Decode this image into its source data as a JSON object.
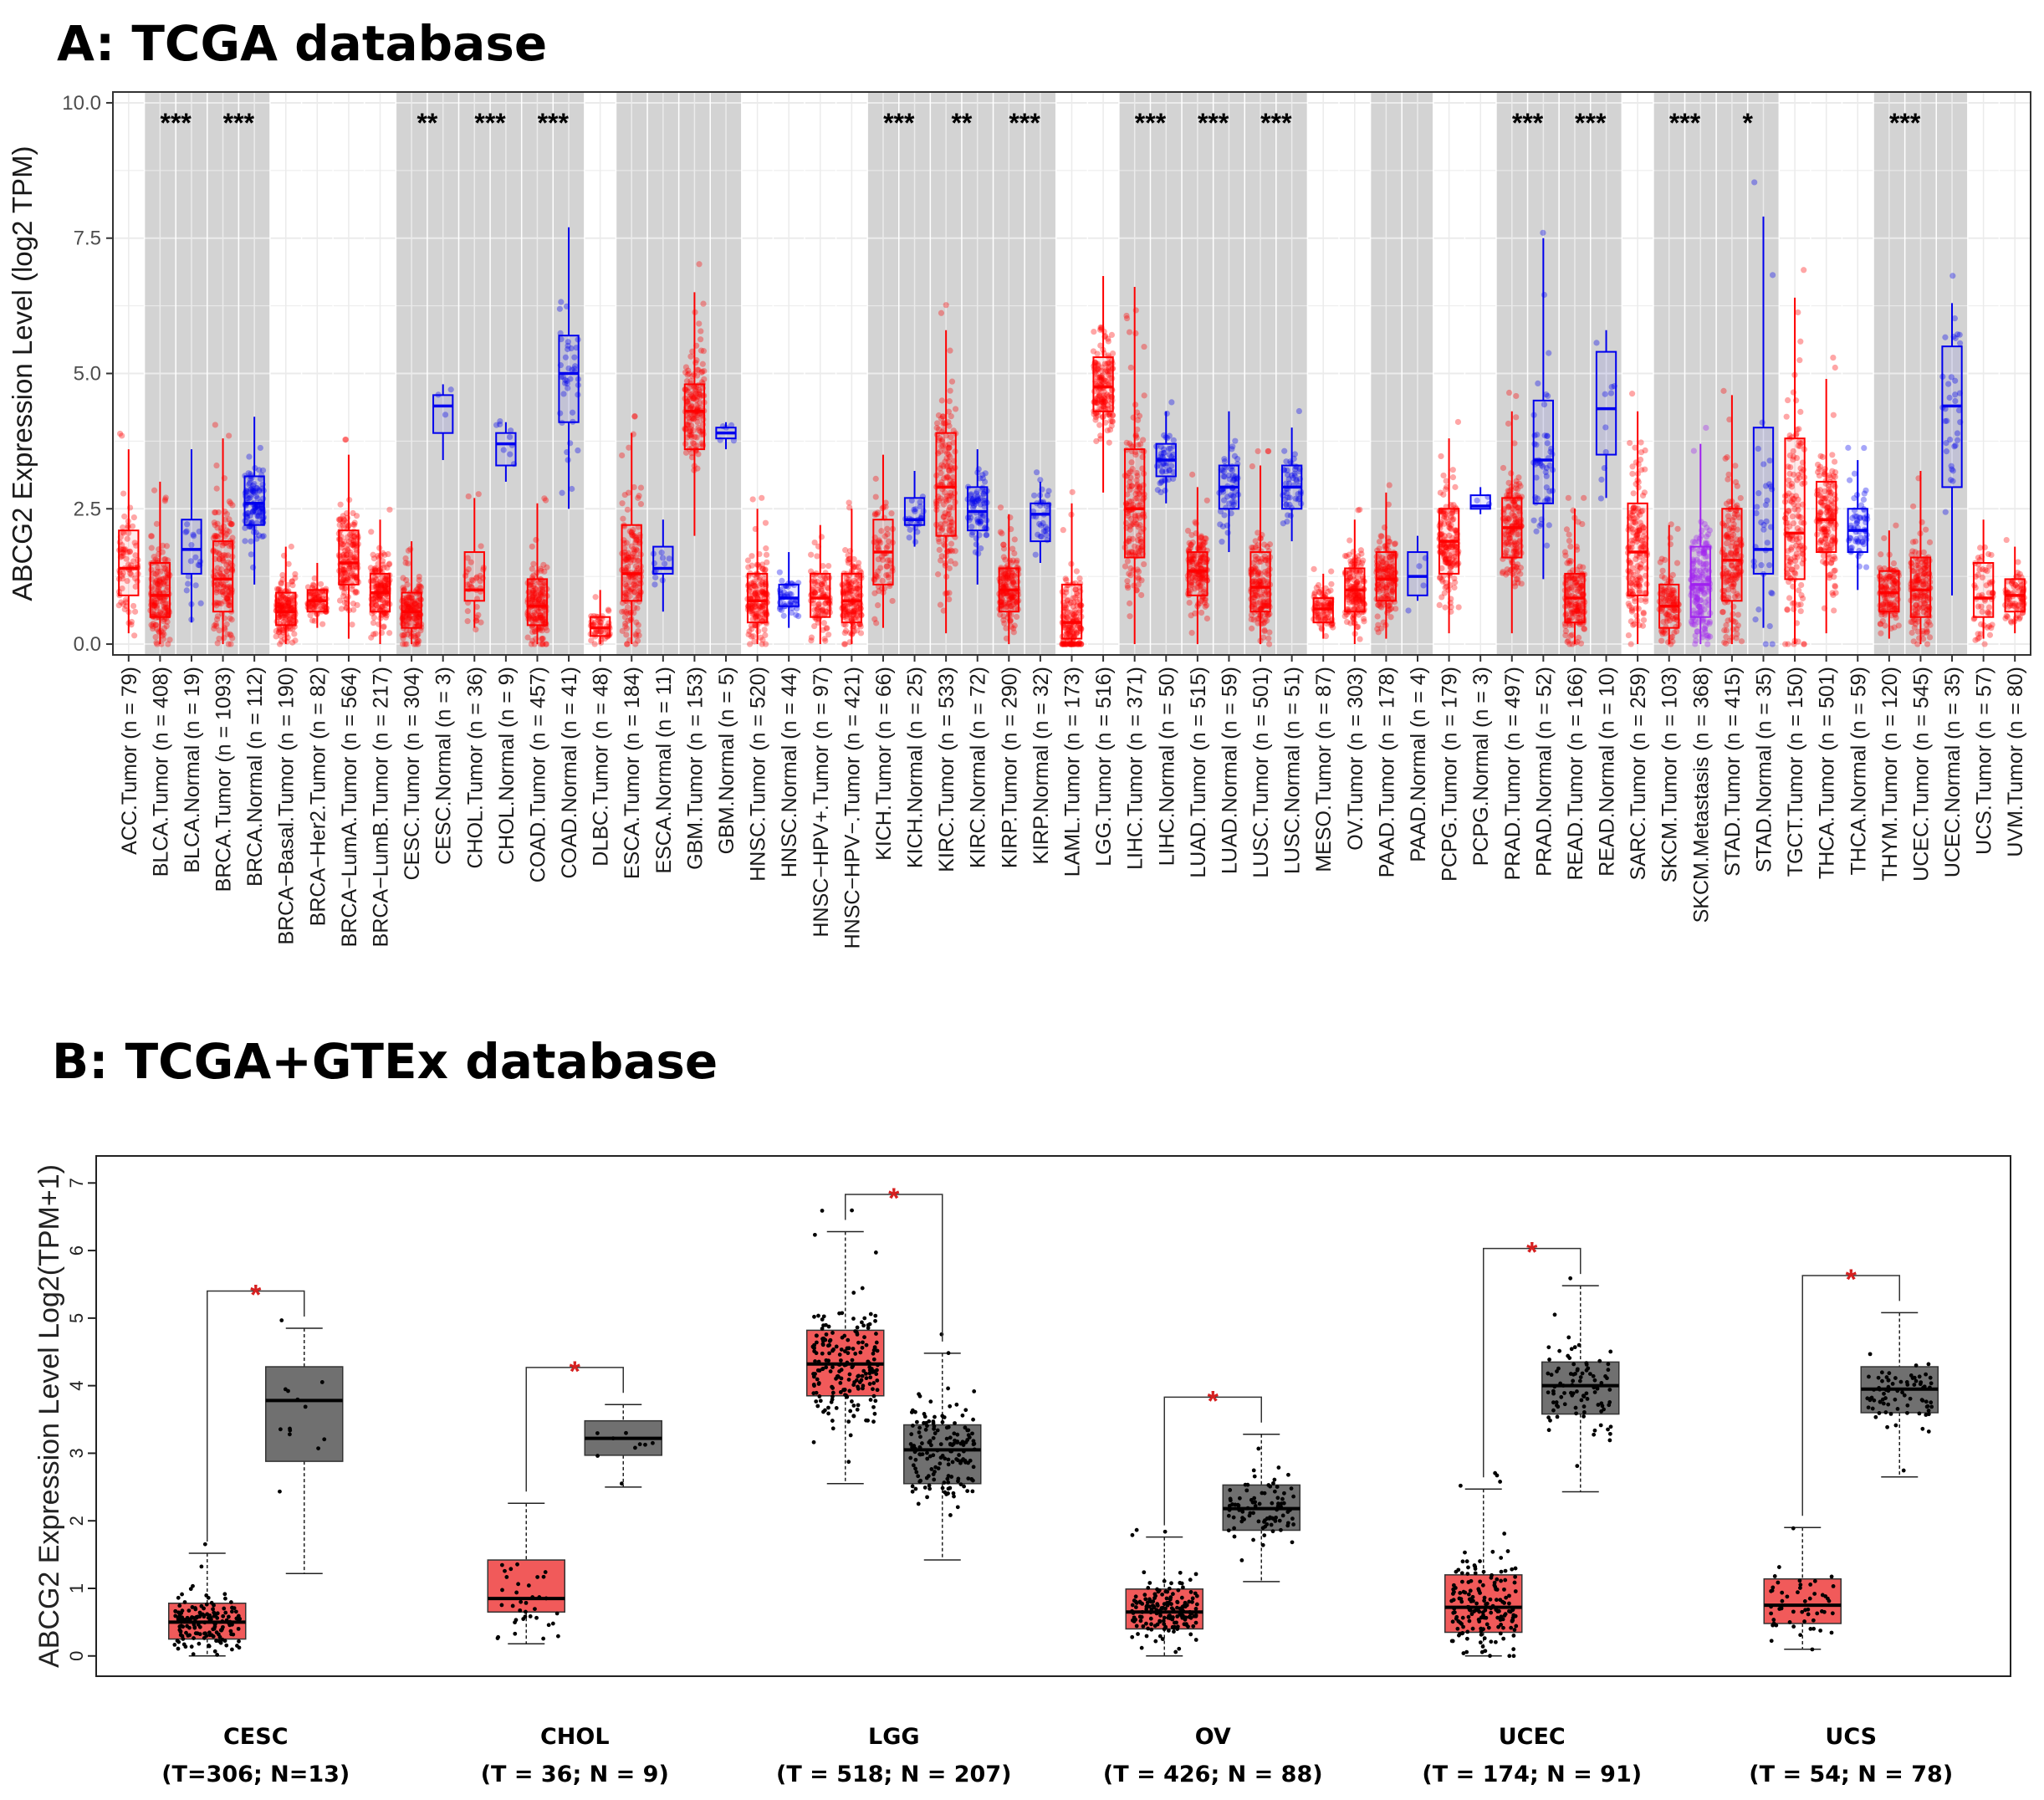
{
  "panel_a": {
    "title": "A: TCGA database"
  },
  "panel_b": {
    "title": "B: TCGA+GTEx database"
  },
  "chart_data": [
    {
      "type": "box",
      "title": "A: TCGA database",
      "ylabel": "ABCG2 Expression Level (log2 TPM)",
      "ylim": [
        -0.2,
        10.2
      ],
      "yticks": [
        "0.0",
        "2.5",
        "5.0",
        "7.5",
        "10.0"
      ],
      "tumor_color": "#ff0000",
      "normal_color": "#0000ee",
      "metastasis_color": "#a020f0",
      "groups": [
        {
          "label": "ACC.Tumor (n = 79)",
          "kind": "tumor",
          "shade": false,
          "q1": 0.9,
          "med": 1.4,
          "q3": 2.1,
          "lo": 0.2,
          "hi": 3.6,
          "sig": ""
        },
        {
          "label": "BLCA.Tumor (n = 408)",
          "kind": "tumor",
          "shade": true,
          "q1": 0.5,
          "med": 0.9,
          "q3": 1.5,
          "lo": 0.0,
          "hi": 3.0,
          "sig": "***"
        },
        {
          "label": "BLCA.Normal (n = 19)",
          "kind": "normal",
          "shade": true,
          "q1": 1.3,
          "med": 1.75,
          "q3": 2.3,
          "lo": 0.4,
          "hi": 3.6,
          "sig": ""
        },
        {
          "label": "BRCA.Tumor (n = 1093)",
          "kind": "tumor",
          "shade": true,
          "q1": 0.6,
          "med": 1.2,
          "q3": 1.9,
          "lo": 0.0,
          "hi": 3.8,
          "sig": "***"
        },
        {
          "label": "BRCA.Normal (n = 112)",
          "kind": "normal",
          "shade": true,
          "q1": 2.2,
          "med": 2.6,
          "q3": 3.1,
          "lo": 1.1,
          "hi": 4.2,
          "sig": ""
        },
        {
          "label": "BRCA−Basal.Tumor (n = 190)",
          "kind": "tumor",
          "shade": false,
          "q1": 0.35,
          "med": 0.6,
          "q3": 0.95,
          "lo": 0.0,
          "hi": 1.8,
          "sig": ""
        },
        {
          "label": "BRCA−Her2.Tumor (n = 82)",
          "kind": "tumor",
          "shade": false,
          "q1": 0.6,
          "med": 0.8,
          "q3": 1.0,
          "lo": 0.3,
          "hi": 1.5,
          "sig": ""
        },
        {
          "label": "BRCA−LumA.Tumor (n = 564)",
          "kind": "tumor",
          "shade": false,
          "q1": 1.1,
          "med": 1.5,
          "q3": 2.1,
          "lo": 0.1,
          "hi": 3.5,
          "sig": ""
        },
        {
          "label": "BRCA−LumB.Tumor (n = 217)",
          "kind": "tumor",
          "shade": false,
          "q1": 0.6,
          "med": 0.95,
          "q3": 1.3,
          "lo": 0.0,
          "hi": 2.3,
          "sig": ""
        },
        {
          "label": "CESC.Tumor (n = 304)",
          "kind": "tumor",
          "shade": true,
          "q1": 0.3,
          "med": 0.6,
          "q3": 0.95,
          "lo": 0.0,
          "hi": 1.9,
          "sig": "**"
        },
        {
          "label": "CESC.Normal (n = 3)",
          "kind": "normal",
          "shade": true,
          "q1": 3.9,
          "med": 4.4,
          "q3": 4.6,
          "lo": 3.4,
          "hi": 4.8,
          "sig": ""
        },
        {
          "label": "CHOL.Tumor (n = 36)",
          "kind": "tumor",
          "shade": true,
          "q1": 0.8,
          "med": 1.0,
          "q3": 1.7,
          "lo": 0.3,
          "hi": 2.7,
          "sig": "***"
        },
        {
          "label": "CHOL.Normal (n = 9)",
          "kind": "normal",
          "shade": true,
          "q1": 3.3,
          "med": 3.7,
          "q3": 3.9,
          "lo": 3.0,
          "hi": 4.1,
          "sig": ""
        },
        {
          "label": "COAD.Tumor (n = 457)",
          "kind": "tumor",
          "shade": true,
          "q1": 0.35,
          "med": 0.7,
          "q3": 1.2,
          "lo": 0.0,
          "hi": 2.6,
          "sig": "***"
        },
        {
          "label": "COAD.Normal (n = 41)",
          "kind": "normal",
          "shade": true,
          "q1": 4.1,
          "med": 5.0,
          "q3": 5.7,
          "lo": 2.5,
          "hi": 7.7,
          "sig": ""
        },
        {
          "label": "DLBC.Tumor (n = 48)",
          "kind": "tumor",
          "shade": false,
          "q1": 0.15,
          "med": 0.3,
          "q3": 0.5,
          "lo": 0.0,
          "hi": 1.0,
          "sig": ""
        },
        {
          "label": "ESCA.Tumor (n = 184)",
          "kind": "tumor",
          "shade": true,
          "q1": 0.8,
          "med": 1.3,
          "q3": 2.2,
          "lo": 0.0,
          "hi": 3.9,
          "sig": ""
        },
        {
          "label": "ESCA.Normal (n = 11)",
          "kind": "normal",
          "shade": true,
          "q1": 1.3,
          "med": 1.4,
          "q3": 1.8,
          "lo": 0.6,
          "hi": 2.3,
          "sig": ""
        },
        {
          "label": "GBM.Tumor (n = 153)",
          "kind": "tumor",
          "shade": true,
          "q1": 3.6,
          "med": 4.3,
          "q3": 4.8,
          "lo": 2.0,
          "hi": 6.5,
          "sig": ""
        },
        {
          "label": "GBM.Normal (n = 5)",
          "kind": "normal",
          "shade": true,
          "q1": 3.8,
          "med": 3.9,
          "q3": 4.0,
          "lo": 3.6,
          "hi": 4.1,
          "sig": ""
        },
        {
          "label": "HNSC.Tumor (n = 520)",
          "kind": "tumor",
          "shade": false,
          "q1": 0.4,
          "med": 0.8,
          "q3": 1.3,
          "lo": 0.0,
          "hi": 2.5,
          "sig": ""
        },
        {
          "label": "HNSC.Normal (n = 44)",
          "kind": "normal",
          "shade": false,
          "q1": 0.7,
          "med": 0.85,
          "q3": 1.1,
          "lo": 0.3,
          "hi": 1.7,
          "sig": ""
        },
        {
          "label": "HNSC−HPV+.Tumor (n = 97)",
          "kind": "tumor",
          "shade": false,
          "q1": 0.5,
          "med": 0.85,
          "q3": 1.3,
          "lo": 0.0,
          "hi": 2.2,
          "sig": ""
        },
        {
          "label": "HNSC−HPV−.Tumor (n = 421)",
          "kind": "tumor",
          "shade": false,
          "q1": 0.4,
          "med": 0.8,
          "q3": 1.3,
          "lo": 0.0,
          "hi": 2.5,
          "sig": ""
        },
        {
          "label": "KICH.Tumor (n = 66)",
          "kind": "tumor",
          "shade": true,
          "q1": 1.1,
          "med": 1.7,
          "q3": 2.3,
          "lo": 0.3,
          "hi": 3.5,
          "sig": "***"
        },
        {
          "label": "KICH.Normal (n = 25)",
          "kind": "normal",
          "shade": true,
          "q1": 2.2,
          "med": 2.3,
          "q3": 2.7,
          "lo": 1.8,
          "hi": 3.2,
          "sig": ""
        },
        {
          "label": "KIRC.Tumor (n = 533)",
          "kind": "tumor",
          "shade": true,
          "q1": 2.0,
          "med": 2.9,
          "q3": 3.9,
          "lo": 0.2,
          "hi": 5.8,
          "sig": "**"
        },
        {
          "label": "KIRC.Normal (n = 72)",
          "kind": "normal",
          "shade": true,
          "q1": 2.1,
          "med": 2.45,
          "q3": 2.9,
          "lo": 1.1,
          "hi": 3.6,
          "sig": ""
        },
        {
          "label": "KIRP.Tumor (n = 290)",
          "kind": "tumor",
          "shade": true,
          "q1": 0.6,
          "med": 1.0,
          "q3": 1.4,
          "lo": 0.0,
          "hi": 2.4,
          "sig": "***"
        },
        {
          "label": "KIRP.Normal (n = 32)",
          "kind": "normal",
          "shade": true,
          "q1": 1.9,
          "med": 2.4,
          "q3": 2.6,
          "lo": 1.5,
          "hi": 3.0,
          "sig": ""
        },
        {
          "label": "LAML.Tumor (n = 173)",
          "kind": "tumor",
          "shade": false,
          "q1": 0.1,
          "med": 0.4,
          "q3": 1.1,
          "lo": 0.0,
          "hi": 2.6,
          "sig": ""
        },
        {
          "label": "LGG.Tumor (n = 516)",
          "kind": "tumor",
          "shade": false,
          "q1": 4.3,
          "med": 4.75,
          "q3": 5.3,
          "lo": 2.8,
          "hi": 6.8,
          "sig": ""
        },
        {
          "label": "LIHC.Tumor (n = 371)",
          "kind": "tumor",
          "shade": true,
          "q1": 1.6,
          "med": 2.5,
          "q3": 3.6,
          "lo": 0.0,
          "hi": 6.6,
          "sig": "***"
        },
        {
          "label": "LIHC.Normal (n = 50)",
          "kind": "normal",
          "shade": true,
          "q1": 3.1,
          "med": 3.4,
          "q3": 3.7,
          "lo": 2.6,
          "hi": 4.3,
          "sig": ""
        },
        {
          "label": "LUAD.Tumor (n = 515)",
          "kind": "tumor",
          "shade": true,
          "q1": 0.9,
          "med": 1.35,
          "q3": 1.7,
          "lo": 0.0,
          "hi": 2.9,
          "sig": "***"
        },
        {
          "label": "LUAD.Normal (n = 59)",
          "kind": "normal",
          "shade": true,
          "q1": 2.5,
          "med": 2.9,
          "q3": 3.3,
          "lo": 1.7,
          "hi": 4.3,
          "sig": ""
        },
        {
          "label": "LUSC.Tumor (n = 501)",
          "kind": "tumor",
          "shade": true,
          "q1": 0.6,
          "med": 1.05,
          "q3": 1.7,
          "lo": 0.0,
          "hi": 3.3,
          "sig": "***"
        },
        {
          "label": "LUSC.Normal (n = 51)",
          "kind": "normal",
          "shade": true,
          "q1": 2.5,
          "med": 2.9,
          "q3": 3.3,
          "lo": 1.9,
          "hi": 4.0,
          "sig": ""
        },
        {
          "label": "MESO.Tumor (n = 87)",
          "kind": "tumor",
          "shade": false,
          "q1": 0.4,
          "med": 0.65,
          "q3": 0.85,
          "lo": 0.1,
          "hi": 1.3,
          "sig": ""
        },
        {
          "label": "OV.Tumor (n = 303)",
          "kind": "tumor",
          "shade": false,
          "q1": 0.6,
          "med": 1.0,
          "q3": 1.4,
          "lo": 0.0,
          "hi": 2.3,
          "sig": ""
        },
        {
          "label": "PAAD.Tumor (n = 178)",
          "kind": "tumor",
          "shade": true,
          "q1": 0.8,
          "med": 1.2,
          "q3": 1.7,
          "lo": 0.1,
          "hi": 2.8,
          "sig": ""
        },
        {
          "label": "PAAD.Normal (n = 4)",
          "kind": "normal",
          "shade": true,
          "q1": 0.9,
          "med": 1.25,
          "q3": 1.7,
          "lo": 0.8,
          "hi": 2.0,
          "sig": ""
        },
        {
          "label": "PCPG.Tumor (n = 179)",
          "kind": "tumor",
          "shade": false,
          "q1": 1.3,
          "med": 1.9,
          "q3": 2.5,
          "lo": 0.2,
          "hi": 3.8,
          "sig": ""
        },
        {
          "label": "PCPG.Normal (n = 3)",
          "kind": "normal",
          "shade": false,
          "q1": 2.5,
          "med": 2.55,
          "q3": 2.75,
          "lo": 2.4,
          "hi": 2.9,
          "sig": ""
        },
        {
          "label": "PRAD.Tumor (n = 497)",
          "kind": "tumor",
          "shade": true,
          "q1": 1.6,
          "med": 2.15,
          "q3": 2.7,
          "lo": 0.2,
          "hi": 4.3,
          "sig": "***"
        },
        {
          "label": "PRAD.Normal (n = 52)",
          "kind": "normal",
          "shade": true,
          "q1": 2.6,
          "med": 3.4,
          "q3": 4.5,
          "lo": 1.2,
          "hi": 7.5,
          "sig": ""
        },
        {
          "label": "READ.Tumor (n = 166)",
          "kind": "tumor",
          "shade": true,
          "q1": 0.4,
          "med": 0.85,
          "q3": 1.3,
          "lo": 0.0,
          "hi": 2.5,
          "sig": "***"
        },
        {
          "label": "READ.Normal (n = 10)",
          "kind": "normal",
          "shade": true,
          "q1": 3.5,
          "med": 4.35,
          "q3": 5.4,
          "lo": 2.7,
          "hi": 5.8,
          "sig": ""
        },
        {
          "label": "SARC.Tumor (n = 259)",
          "kind": "tumor",
          "shade": false,
          "q1": 0.9,
          "med": 1.7,
          "q3": 2.6,
          "lo": 0.0,
          "hi": 4.3,
          "sig": ""
        },
        {
          "label": "SKCM.Tumor (n = 103)",
          "kind": "tumor",
          "shade": true,
          "q1": 0.3,
          "med": 0.7,
          "q3": 1.1,
          "lo": 0.0,
          "hi": 2.2,
          "sig": "***"
        },
        {
          "label": "SKCM.Metastasis (n = 368)",
          "kind": "metastasis",
          "shade": true,
          "q1": 0.5,
          "med": 1.1,
          "q3": 1.8,
          "lo": 0.0,
          "hi": 3.7,
          "sig": ""
        },
        {
          "label": "STAD.Tumor (n = 415)",
          "kind": "tumor",
          "shade": true,
          "q1": 0.8,
          "med": 1.55,
          "q3": 2.5,
          "lo": 0.0,
          "hi": 4.6,
          "sig": "*"
        },
        {
          "label": "STAD.Normal (n = 35)",
          "kind": "normal",
          "shade": true,
          "q1": 1.3,
          "med": 1.75,
          "q3": 4.0,
          "lo": 0.3,
          "hi": 7.9,
          "sig": ""
        },
        {
          "label": "TGCT.Tumor (n = 150)",
          "kind": "tumor",
          "shade": false,
          "q1": 1.2,
          "med": 2.05,
          "q3": 3.8,
          "lo": 0.0,
          "hi": 6.4,
          "sig": ""
        },
        {
          "label": "THCA.Tumor (n = 501)",
          "kind": "tumor",
          "shade": false,
          "q1": 1.7,
          "med": 2.3,
          "q3": 3.0,
          "lo": 0.2,
          "hi": 4.9,
          "sig": ""
        },
        {
          "label": "THCA.Normal (n = 59)",
          "kind": "normal",
          "shade": false,
          "q1": 1.7,
          "med": 2.1,
          "q3": 2.5,
          "lo": 1.0,
          "hi": 3.4,
          "sig": ""
        },
        {
          "label": "THYM.Tumor (n = 120)",
          "kind": "tumor",
          "shade": true,
          "q1": 0.6,
          "med": 0.95,
          "q3": 1.35,
          "lo": 0.1,
          "hi": 2.1,
          "sig": "***"
        },
        {
          "label": "UCEC.Tumor (n = 545)",
          "kind": "tumor",
          "shade": true,
          "q1": 0.5,
          "med": 1.0,
          "q3": 1.6,
          "lo": 0.0,
          "hi": 3.2,
          "sig": ""
        },
        {
          "label": "UCEC.Normal (n = 35)",
          "kind": "normal",
          "shade": true,
          "q1": 2.9,
          "med": 4.4,
          "q3": 5.5,
          "lo": 0.9,
          "hi": 6.3,
          "sig": ""
        },
        {
          "label": "UCS.Tumor (n = 57)",
          "kind": "tumor",
          "shade": false,
          "q1": 0.5,
          "med": 0.85,
          "q3": 1.5,
          "lo": 0.1,
          "hi": 2.3,
          "sig": ""
        },
        {
          "label": "UVM.Tumor (n = 80)",
          "kind": "tumor",
          "shade": false,
          "q1": 0.6,
          "med": 0.9,
          "q3": 1.2,
          "lo": 0.2,
          "hi": 1.8,
          "sig": ""
        }
      ]
    },
    {
      "type": "box",
      "title": "B: TCGA+GTEx database",
      "ylabel": "ABCG2 Expression Level Log2(TPM+1)",
      "ylim": [
        -0.3,
        7.4
      ],
      "yticks": [
        "0",
        "1",
        "2",
        "3",
        "4",
        "5",
        "6",
        "7"
      ],
      "tumor_color": "#f15a5a",
      "normal_color": "#707070",
      "significance_color": "#d62020",
      "cancers": [
        {
          "name": "CESC",
          "label": "(T=306; N=13)",
          "sig": "*",
          "tumor": {
            "q1": 0.25,
            "med": 0.5,
            "q3": 0.78,
            "lo": 0.0,
            "hi": 1.52
          },
          "normal": {
            "q1": 2.88,
            "med": 3.78,
            "q3": 4.28,
            "lo": 1.22,
            "hi": 4.85
          }
        },
        {
          "name": "CHOL",
          "label": "(T = 36; N = 9)",
          "sig": "*",
          "tumor": {
            "q1": 0.65,
            "med": 0.85,
            "q3": 1.42,
            "lo": 0.18,
            "hi": 2.26
          },
          "normal": {
            "q1": 2.97,
            "med": 3.22,
            "q3": 3.48,
            "lo": 2.5,
            "hi": 3.72
          }
        },
        {
          "name": "LGG",
          "label": "(T = 518; N = 207)",
          "sig": "*",
          "tumor": {
            "q1": 3.85,
            "med": 4.32,
            "q3": 4.82,
            "lo": 2.55,
            "hi": 6.28
          },
          "normal": {
            "q1": 2.55,
            "med": 3.05,
            "q3": 3.42,
            "lo": 1.42,
            "hi": 4.48
          }
        },
        {
          "name": "OV",
          "label": "(T = 426; N = 88)",
          "sig": "*",
          "tumor": {
            "q1": 0.4,
            "med": 0.65,
            "q3": 0.99,
            "lo": 0.0,
            "hi": 1.76
          },
          "normal": {
            "q1": 1.86,
            "med": 2.18,
            "q3": 2.53,
            "lo": 1.1,
            "hi": 3.28
          }
        },
        {
          "name": "UCEC",
          "label": "(T = 174; N = 91)",
          "sig": "*",
          "tumor": {
            "q1": 0.35,
            "med": 0.72,
            "q3": 1.2,
            "lo": 0.0,
            "hi": 2.47
          },
          "normal": {
            "q1": 3.58,
            "med": 4.0,
            "q3": 4.35,
            "lo": 2.43,
            "hi": 5.48
          }
        },
        {
          "name": "UCS",
          "label": "(T = 54; N = 78)",
          "sig": "*",
          "tumor": {
            "q1": 0.48,
            "med": 0.75,
            "q3": 1.14,
            "lo": 0.1,
            "hi": 1.9
          },
          "normal": {
            "q1": 3.6,
            "med": 3.95,
            "q3": 4.28,
            "lo": 2.65,
            "hi": 5.08
          }
        }
      ]
    }
  ]
}
